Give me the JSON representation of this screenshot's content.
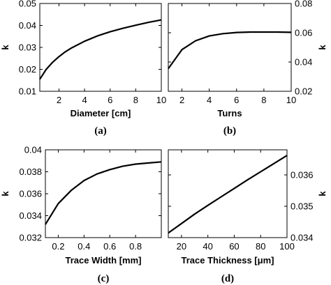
{
  "chart_data": [
    {
      "id": "a",
      "type": "line",
      "caption": "(a)",
      "xlabel": "Diameter [cm]",
      "ylabel": "k",
      "ylabel_side": "left",
      "xlim": [
        0.5,
        10
      ],
      "ylim": [
        0.01,
        0.05
      ],
      "xticks": [
        2,
        4,
        6,
        8,
        10
      ],
      "xtick_labels": [
        "2",
        "4",
        "6",
        "8",
        "10"
      ],
      "yticks": [
        0.01,
        0.02,
        0.03,
        0.04,
        0.05
      ],
      "ytick_labels": [
        "0.01",
        "0.02",
        "0.03",
        "0.04",
        "0.05"
      ],
      "grid": false,
      "series": [
        {
          "x": [
            0.5,
            1,
            1.5,
            2,
            2.5,
            3,
            4,
            5,
            6,
            7,
            8,
            9,
            10
          ],
          "y": [
            0.0155,
            0.02,
            0.0232,
            0.0258,
            0.028,
            0.0298,
            0.0328,
            0.0352,
            0.0371,
            0.0387,
            0.0401,
            0.0414,
            0.0425
          ]
        }
      ]
    },
    {
      "id": "b",
      "type": "line",
      "caption": "(b)",
      "xlabel": "Turns",
      "ylabel": "k",
      "ylabel_side": "right",
      "xlim": [
        1,
        10
      ],
      "ylim": [
        0.02,
        0.08
      ],
      "xticks": [
        2,
        4,
        6,
        8,
        10
      ],
      "xtick_labels": [
        "2",
        "4",
        "6",
        "8",
        "10"
      ],
      "yticks": [
        0.02,
        0.04,
        0.06,
        0.08
      ],
      "ytick_labels": [
        "0.02",
        "0.04",
        "0.06",
        "0.08"
      ],
      "grid": false,
      "series": [
        {
          "x": [
            1,
            2,
            3,
            4,
            5,
            6,
            7,
            8,
            9,
            10
          ],
          "y": [
            0.0355,
            0.0485,
            0.0545,
            0.0578,
            0.0594,
            0.0602,
            0.0605,
            0.0605,
            0.0605,
            0.0603
          ]
        }
      ]
    },
    {
      "id": "c",
      "type": "line",
      "caption": "(c)",
      "xlabel": "Trace Width [mm]",
      "ylabel": "k",
      "ylabel_side": "left",
      "xlim": [
        0.1,
        1.0
      ],
      "ylim": [
        0.032,
        0.04
      ],
      "xticks": [
        0.2,
        0.4,
        0.6,
        0.8
      ],
      "xtick_labels": [
        "0.2",
        "0.4",
        "0.6",
        "0.8"
      ],
      "yticks": [
        0.032,
        0.034,
        0.036,
        0.038,
        0.04
      ],
      "ytick_labels": [
        "0.032",
        "0.034",
        "0.036",
        "0.038",
        "0.04"
      ],
      "grid": false,
      "series": [
        {
          "x": [
            0.1,
            0.2,
            0.3,
            0.4,
            0.5,
            0.6,
            0.7,
            0.8,
            0.9,
            1.0
          ],
          "y": [
            0.0332,
            0.0351,
            0.0363,
            0.0372,
            0.0378,
            0.0382,
            0.0385,
            0.0387,
            0.0388,
            0.0389
          ]
        }
      ]
    },
    {
      "id": "d",
      "type": "line",
      "caption": "(d)",
      "xlabel": "Trace Thickness [μm]",
      "ylabel": "k",
      "ylabel_side": "right",
      "xlim": [
        10,
        100
      ],
      "ylim": [
        0.034,
        0.0368
      ],
      "xticks": [
        20,
        40,
        60,
        80,
        100
      ],
      "xtick_labels": [
        "20",
        "40",
        "60",
        "80",
        "100"
      ],
      "yticks": [
        0.034,
        0.035,
        0.036
      ],
      "ytick_labels": [
        "0.034",
        "0.035",
        "0.036"
      ],
      "grid": false,
      "series": [
        {
          "x": [
            10,
            20,
            30,
            40,
            50,
            60,
            70,
            80,
            90,
            100
          ],
          "y": [
            0.03415,
            0.03445,
            0.03475,
            0.03503,
            0.0353,
            0.03557,
            0.03584,
            0.0361,
            0.03636,
            0.03662
          ]
        }
      ]
    }
  ]
}
